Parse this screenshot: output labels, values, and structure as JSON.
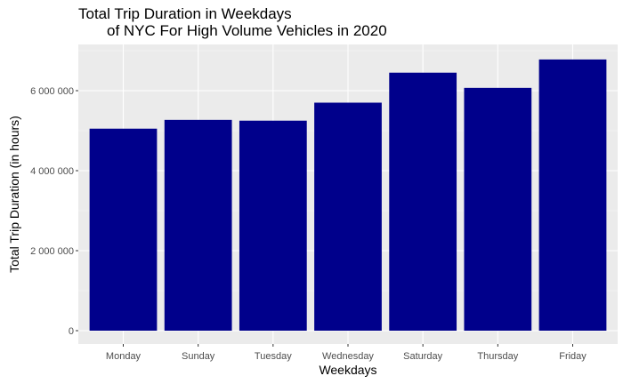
{
  "chart_data": {
    "type": "bar",
    "title_lines": [
      "Total Trip Duration in Weekdays",
      "of NYC For High Volume Vehicles in 2020"
    ],
    "xlabel": "Weekdays",
    "ylabel": "Total Trip Duration (in hours)",
    "categories": [
      "Monday",
      "Sunday",
      "Tuesday",
      "Wednesday",
      "Saturday",
      "Thursday",
      "Friday"
    ],
    "values": [
      5050000,
      5270000,
      5250000,
      5700000,
      6450000,
      6070000,
      6780000
    ],
    "ylim": [
      0,
      7100000
    ],
    "yticks": [
      0,
      2000000,
      4000000,
      6000000
    ],
    "ytick_labels": [
      "0",
      "2 000 000",
      "4 000 000",
      "6 000 000"
    ],
    "grid": true,
    "legend": "none",
    "colors": {
      "bar": "#00008b",
      "panel": "#ebebeb",
      "grid_major": "#ffffff",
      "grid_minor": "#f5f5f5"
    }
  }
}
